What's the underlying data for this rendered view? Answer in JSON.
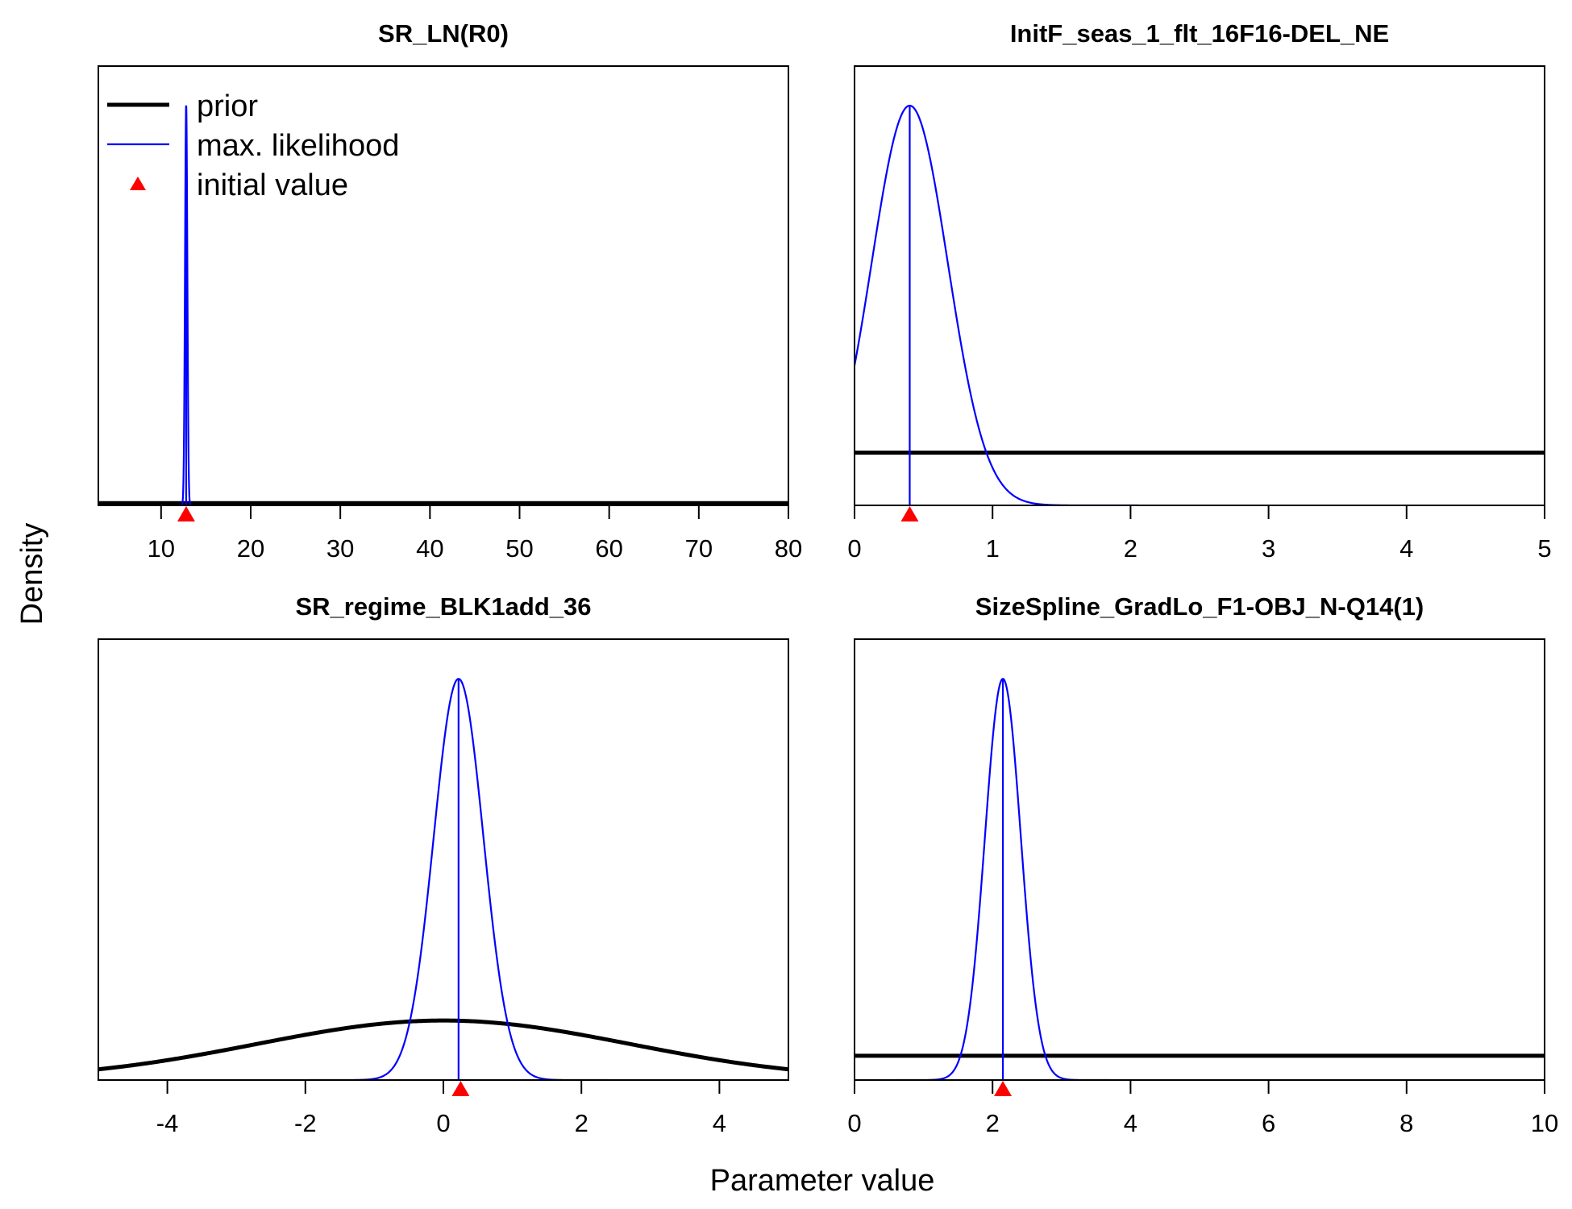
{
  "figure": {
    "ylabel": "Density",
    "xlabel": "Parameter value",
    "legend": [
      {
        "label": "prior",
        "style": "thick-black-line"
      },
      {
        "label": "max. likelihood",
        "style": "thin-blue-line"
      },
      {
        "label": "initial value",
        "style": "red-triangle"
      }
    ],
    "colors": {
      "prior": "#000000",
      "mle": "#0000ff",
      "init": "#ff0000"
    }
  },
  "chart_data": [
    {
      "type": "line",
      "title": "SR_LN(R0)",
      "xlim": [
        3,
        80
      ],
      "xticks": [
        10,
        20,
        30,
        40,
        50,
        60,
        70,
        80
      ],
      "y_axis_shown": false,
      "legend_placement": "top-left",
      "prior": {
        "kind": "flat",
        "relative_height": 0.005
      },
      "mle": {
        "kind": "normal",
        "mean": 12.8,
        "sd": 0.13,
        "peak_relative": 0.91
      },
      "initial_value": 12.8
    },
    {
      "type": "line",
      "title": "InitF_seas_1_flt_16F16-DEL_NE",
      "xlim": [
        0,
        5
      ],
      "xticks": [
        0,
        1,
        2,
        3,
        4,
        5
      ],
      "y_axis_shown": false,
      "prior": {
        "kind": "flat",
        "relative_height": 0.12
      },
      "mle": {
        "kind": "normal",
        "mean": 0.4,
        "sd": 0.276,
        "peak_relative": 0.91
      },
      "initial_value": 0.4
    },
    {
      "type": "line",
      "title": "SR_regime_BLK1add_36",
      "xlim": [
        -5,
        5
      ],
      "xticks": [
        -4,
        -2,
        0,
        2,
        4
      ],
      "y_axis_shown": false,
      "prior": {
        "kind": "normal",
        "mean": 0.0,
        "sd": 2.7,
        "peak_relative": 0.135
      },
      "mle": {
        "kind": "normal",
        "mean": 0.22,
        "sd": 0.36,
        "peak_relative": 0.91
      },
      "initial_value": 0.25
    },
    {
      "type": "line",
      "title": "SizeSpline_GradLo_F1-OBJ_N-Q14(1)",
      "xlim": [
        0,
        10
      ],
      "xticks": [
        0,
        2,
        4,
        6,
        8,
        10
      ],
      "y_axis_shown": false,
      "prior": {
        "kind": "flat",
        "relative_height": 0.055
      },
      "mle": {
        "kind": "normal",
        "mean": 2.15,
        "sd": 0.26,
        "peak_relative": 0.91
      },
      "initial_value": 2.15
    }
  ]
}
